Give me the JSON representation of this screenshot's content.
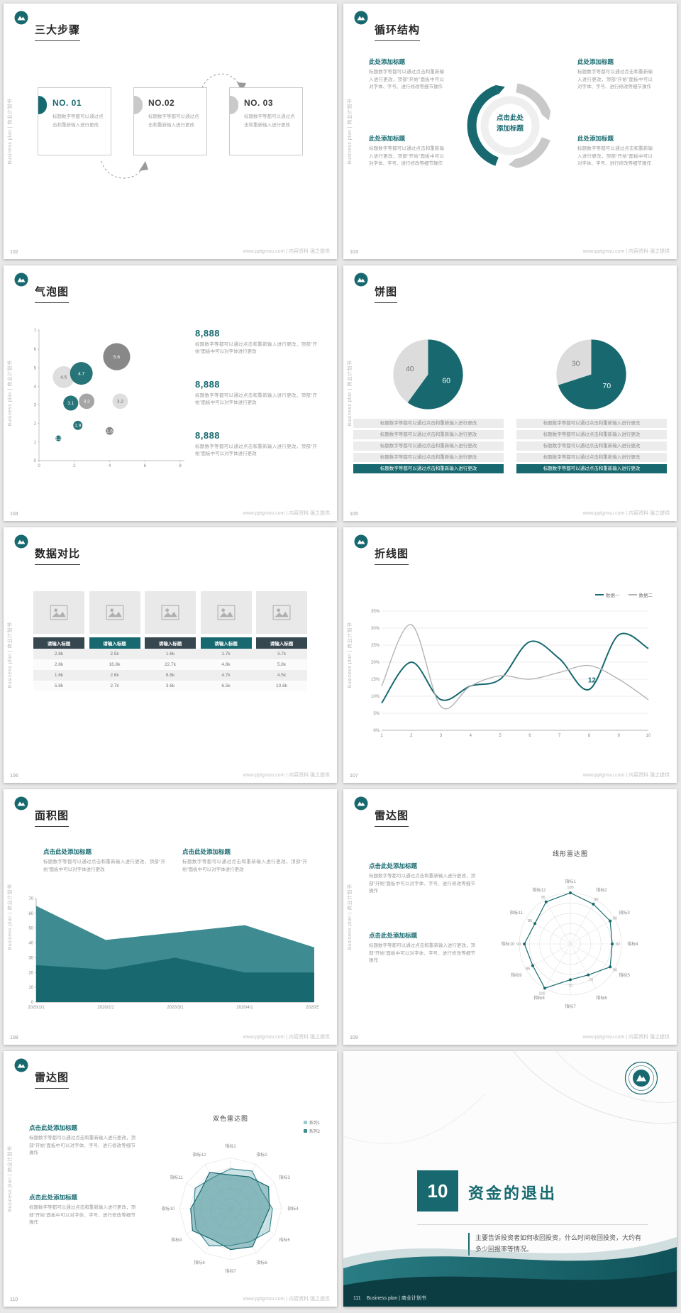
{
  "theme": {
    "teal": "#17696f",
    "teal_dark": "#0b3d43",
    "teal_mid": "#3f8b92",
    "teal_light": "#9ccad0",
    "gray_series": "#b3b3b3",
    "header_dark": "#36474f",
    "page_bg": "#e8e8e8"
  },
  "common": {
    "sidebar_text": "Business plan | 商业计划书",
    "footer_text": "www.pptgmsu.com | 内容资料 强之提供"
  },
  "strings": {
    "heading_here": "此处添加标题",
    "heading_click": "点击此处添加标题",
    "center_line1": "点击此处",
    "center_line2": "添加标题",
    "body_short": "标题数字等都可以通过点击和重新输入进行更改",
    "body_mid": "标题数字等都可以通过点击和重新输入进行更改，顶部“开始”面板中可以对字体进行更改",
    "body_long": "标题数字等都可以通过点击和重新输入进行更改，顶部“开始”面板中可以对字体、字号、进行修改等细节操作"
  },
  "slides": [
    {
      "page": "102",
      "title": "三大步骤",
      "steps": [
        {
          "no": "NO. 01"
        },
        {
          "no": "NO.02"
        },
        {
          "no": "NO. 03"
        }
      ]
    },
    {
      "page": "103",
      "title": "循环结构"
    },
    {
      "page": "104",
      "title": "气泡图",
      "stats": [
        {
          "value": "8,888"
        },
        {
          "value": "8,888"
        },
        {
          "value": "8,888"
        }
      ]
    },
    {
      "page": "105",
      "title": "饼图"
    },
    {
      "page": "106",
      "title": "数据对比"
    },
    {
      "page": "107",
      "title": "折线图"
    },
    {
      "page": "108",
      "title": "面积图"
    },
    {
      "page": "109",
      "title": "雷达图"
    },
    {
      "page": "110",
      "title": "雷达图"
    },
    {
      "page": "111",
      "title": "资金的退出",
      "number": "10",
      "body": "主要告诉投资者如何收回投资，什么时间收回投资，大约有多少回报率等情况。",
      "footer": "Business plan | 商业计划书"
    }
  ],
  "chart_data": [
    {
      "id": "bubble-104",
      "type": "scatter",
      "slide": "104",
      "xlim": [
        0,
        8
      ],
      "ylim": [
        0,
        7
      ],
      "xticks": [
        0,
        2,
        4,
        6,
        8
      ],
      "yticks": [
        0,
        1,
        2,
        3,
        4,
        5,
        6,
        7
      ],
      "points": [
        {
          "x": 1.4,
          "y": 4.5,
          "r": 4.5,
          "label": "4.5",
          "color": "light"
        },
        {
          "x": 2.4,
          "y": 4.7,
          "r": 4.7,
          "label": "4.7",
          "color": "teal"
        },
        {
          "x": 4.4,
          "y": 5.6,
          "r": 5.6,
          "label": "5.6",
          "color": "dark"
        },
        {
          "x": 1.8,
          "y": 3.1,
          "r": 3.1,
          "label": "3.1",
          "color": "teal"
        },
        {
          "x": 2.7,
          "y": 3.2,
          "r": 3.2,
          "label": "3.2",
          "color": "gray"
        },
        {
          "x": 4.6,
          "y": 3.2,
          "r": 3.2,
          "label": "3.2",
          "color": "light"
        },
        {
          "x": 2.2,
          "y": 1.9,
          "r": 1.9,
          "label": "1.9",
          "color": "teal"
        },
        {
          "x": 1.1,
          "y": 1.2,
          "r": 1.2,
          "label": "1.2",
          "color": "teal"
        },
        {
          "x": 4.0,
          "y": 1.6,
          "r": 1.6,
          "label": "1.6",
          "color": "dark"
        }
      ]
    },
    {
      "id": "pie-105-left",
      "type": "pie",
      "slide": "105",
      "values": [
        60,
        40
      ],
      "labels": [
        "60",
        "40"
      ],
      "colors": [
        "teal",
        "light"
      ]
    },
    {
      "id": "pie-105-right",
      "type": "pie",
      "slide": "105",
      "values": [
        70,
        30
      ],
      "labels": [
        "70",
        "30"
      ],
      "colors": [
        "teal",
        "light"
      ]
    },
    {
      "id": "table-106",
      "type": "table",
      "slide": "106",
      "headers": [
        "请输入标题",
        "请输入标题",
        "请输入标题",
        "请输入标题",
        "请输入标题"
      ],
      "rows": [
        [
          "2.8k",
          "2.5k",
          "1.6k",
          "1.7k",
          "3.7k"
        ],
        [
          "2.8k",
          "16.8k",
          "22.7k",
          "4.8k",
          "5.8k"
        ],
        [
          "1.6k",
          "2.6k",
          "6.8k",
          "4.7k",
          "4.5k"
        ],
        [
          "5.8k",
          "2.7k",
          "3.6k",
          "6.5k",
          "10.8k"
        ]
      ]
    },
    {
      "id": "line-107",
      "type": "line",
      "slide": "107",
      "x": [
        1,
        2,
        3,
        4,
        5,
        6,
        7,
        8,
        9,
        10
      ],
      "ylim": [
        0,
        35
      ],
      "yticks": [
        "0%",
        "5%",
        "10%",
        "15%",
        "20%",
        "25%",
        "30%",
        "35%"
      ],
      "series": [
        {
          "name": "数据一",
          "color": "teal",
          "values": [
            8,
            20,
            9,
            13,
            15,
            26,
            21,
            12,
            28,
            24
          ]
        },
        {
          "name": "数据二",
          "color": "gray_series",
          "values": [
            13,
            31,
            7,
            13,
            16,
            15,
            17,
            19,
            15,
            9
          ]
        }
      ],
      "annotation": {
        "x": 8,
        "text": "12"
      }
    },
    {
      "id": "area-108",
      "type": "area",
      "slide": "108",
      "x": [
        "2020/1/1",
        "2020/2/1",
        "2020/3/1",
        "2020/4/1",
        "2020/5/1"
      ],
      "ylim": [
        0,
        70
      ],
      "yticks": [
        0,
        10,
        20,
        30,
        40,
        50,
        60,
        70
      ],
      "series": [
        {
          "color": "teal_mid",
          "values": [
            65,
            42,
            47,
            52,
            37
          ]
        },
        {
          "color": "teal",
          "values": [
            25,
            22,
            30,
            20,
            20
          ]
        }
      ]
    },
    {
      "id": "radar-109",
      "type": "radar",
      "slide": "109",
      "title": "线形雷达图",
      "max": 100,
      "labels": [
        "指标1",
        "指标2",
        "指标3",
        "指标4",
        "指标5",
        "指标6",
        "指标7",
        "指标8",
        "指标9",
        "指标10",
        "指标11",
        "指标12"
      ],
      "rings": [
        70,
        80,
        90,
        100
      ],
      "series": [
        {
          "color": "teal",
          "fill": false,
          "markers": true,
          "show_values": true,
          "values": [
            100,
            90,
            90,
            82,
            90,
            70,
            70,
            100,
            85,
            90,
            80,
            95
          ]
        }
      ]
    },
    {
      "id": "radar-110",
      "type": "radar",
      "slide": "110",
      "title": "双色雷达图",
      "max": 100,
      "web": true,
      "labels": [
        "指标1",
        "指标2",
        "指标3",
        "指标4",
        "指标5",
        "指标6",
        "指标7",
        "指标8",
        "指标9",
        "指标10",
        "指标11",
        "指标12"
      ],
      "series": [
        {
          "name": "系列1",
          "color": "teal_light",
          "stroke": "teal_mid",
          "fill": true,
          "values": [
            78,
            85,
            70,
            82,
            88,
            75,
            72,
            84,
            78,
            72,
            80,
            70
          ]
        },
        {
          "name": "系列2",
          "color": "teal_mid",
          "stroke": "teal",
          "fill": true,
          "values": [
            66,
            72,
            86,
            76,
            70,
            86,
            80,
            70,
            86,
            78,
            68,
            82
          ]
        }
      ]
    }
  ]
}
